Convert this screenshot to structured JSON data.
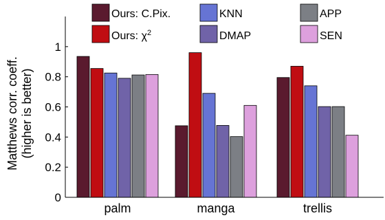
{
  "chart_data": {
    "type": "bar",
    "ylabel_line1": "Matthews corr. coeff.",
    "ylabel_line2": "(higher is better)",
    "xlabel": "",
    "ylim": [
      0,
      1.2
    ],
    "yticks": [
      "0",
      "0.2",
      "0.4",
      "0.6",
      "0.8",
      "1"
    ],
    "categories": [
      "palm",
      "manga",
      "trellis"
    ],
    "legend_placement": "top",
    "grid": false,
    "series": [
      {
        "name": "Ours: C.Pix.",
        "color": "#5a1a2e",
        "values": [
          0.935,
          0.475,
          0.795
        ]
      },
      {
        "name": "Ours: χ",
        "name_superscript": "2",
        "color": "#c00d12",
        "values": [
          0.855,
          0.96,
          0.87
        ]
      },
      {
        "name": "KNN",
        "color": "#6674d4",
        "values": [
          0.825,
          0.69,
          0.74
        ]
      },
      {
        "name": "DMAP",
        "color": "#7063a8",
        "values": [
          0.79,
          0.477,
          0.602
        ]
      },
      {
        "name": "APP",
        "color": "#7c7f85",
        "values": [
          0.812,
          0.403,
          0.602
        ]
      },
      {
        "name": "SEN",
        "color": "#dda0dd",
        "values": [
          0.815,
          0.61,
          0.412
        ]
      }
    ]
  }
}
